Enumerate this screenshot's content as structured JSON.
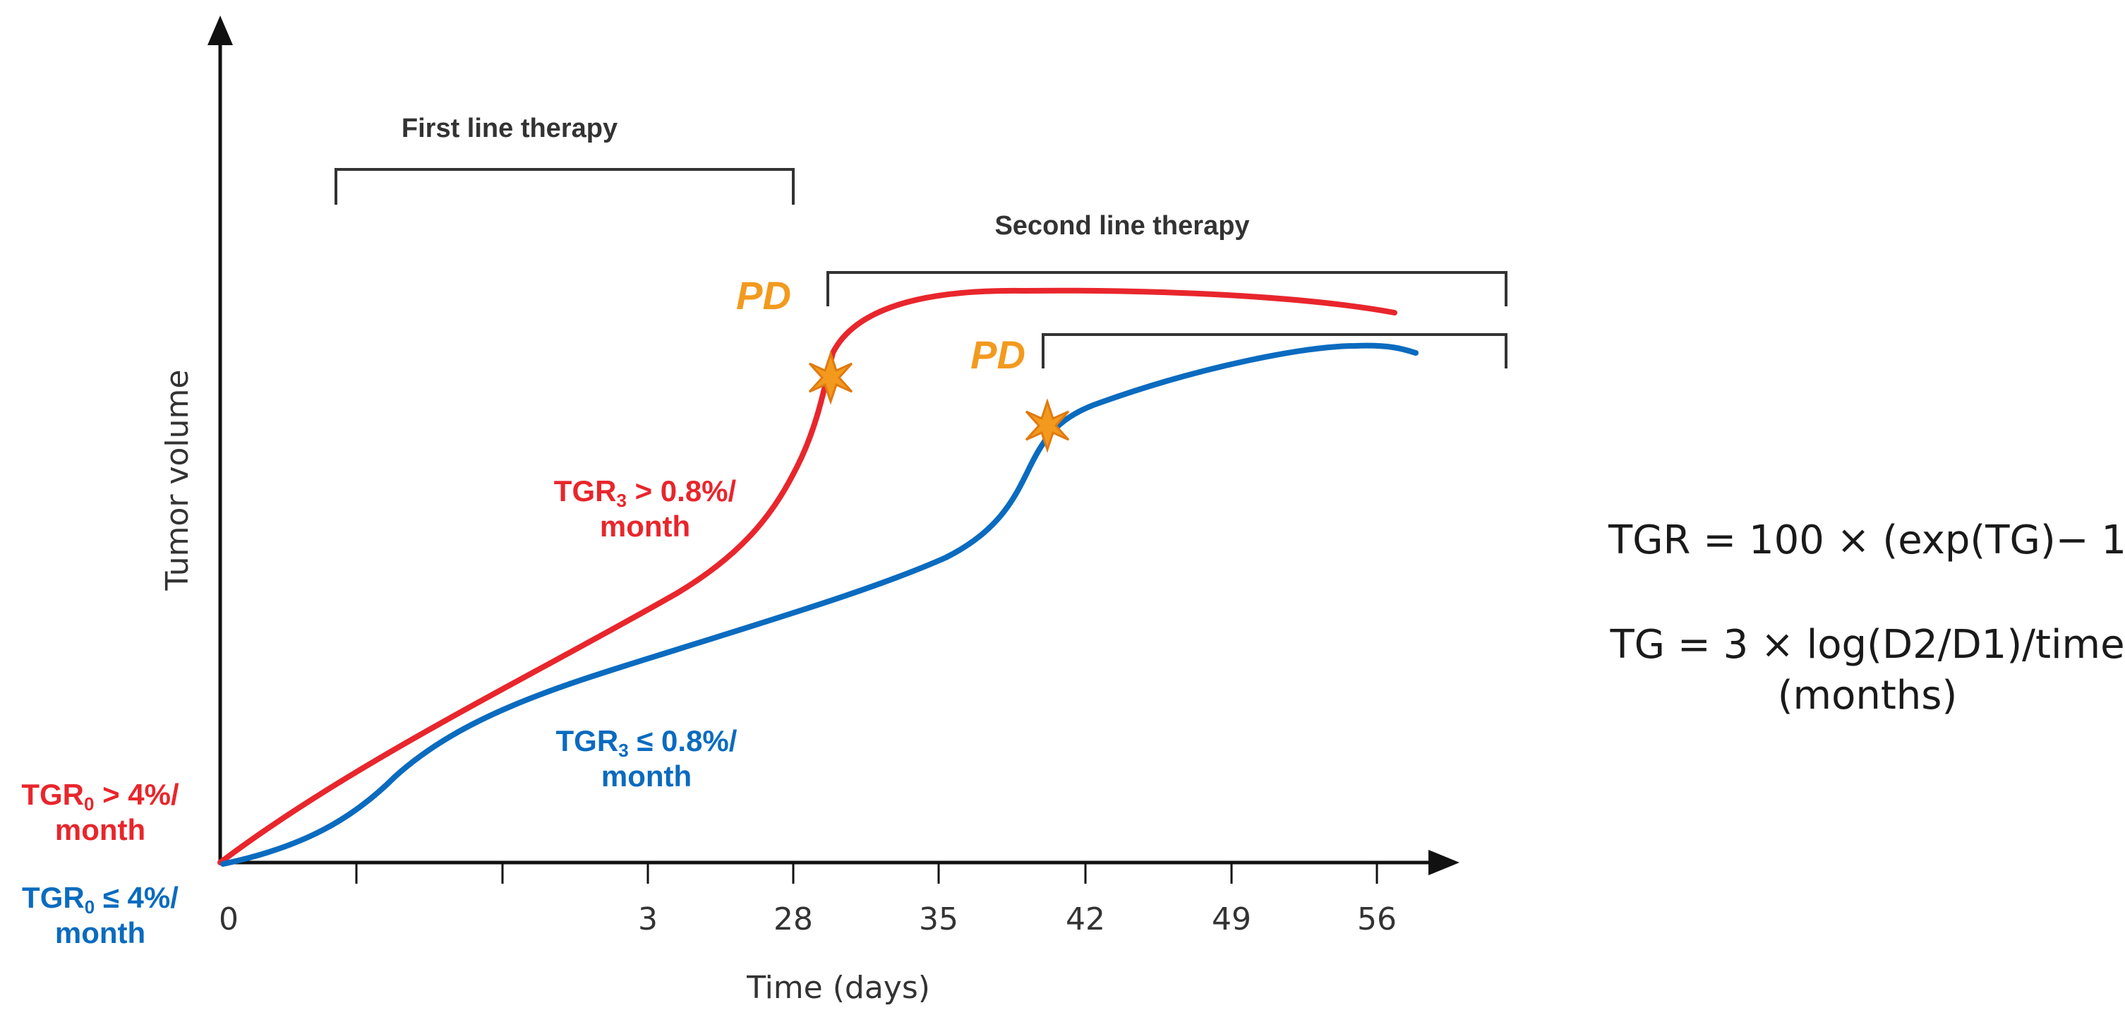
{
  "colors": {
    "red": "#e8262c",
    "blue": "#0a6bbf",
    "orange": "#f39a1e",
    "axis": "#111111",
    "bracket": "#333333"
  },
  "axes": {
    "y_label": "Tumor volume",
    "x_label": "Time (days)",
    "x_ticks": [
      "0",
      "3",
      "28",
      "35",
      "42",
      "49",
      "56"
    ]
  },
  "brackets": {
    "first_line": "First line therapy",
    "second_line": "Second line therapy"
  },
  "markers": {
    "pd_red": "PD",
    "pd_blue": "PD"
  },
  "labels": {
    "tgr3_red_line1": "TGR",
    "tgr3_red_sub": "3",
    "tgr3_red_rest": " >  0.8%/",
    "tgr3_red_line2": "month",
    "tgr3_blue_line1": "TGR",
    "tgr3_blue_sub": "3",
    "tgr3_blue_rest": " ≤ 0.8%/",
    "tgr3_blue_line2": "month",
    "tgr0_red_line1": "TGR",
    "tgr0_red_sub": "0",
    "tgr0_red_rest": " >  4%/",
    "tgr0_red_line2": "month",
    "tgr0_blue_line1": "TGR",
    "tgr0_blue_sub": "0",
    "tgr0_blue_rest": " ≤ 4%/",
    "tgr0_blue_line2": "month"
  },
  "formulas": {
    "tgr": "TGR = 100 × (exp(TG)− 1",
    "tg_line1": "TG = 3 × log(D2/D1)/time",
    "tg_line2": "(months)"
  },
  "icons": {
    "pd_marker_red": "star-burst-icon",
    "pd_marker_blue": "star-burst-icon"
  }
}
